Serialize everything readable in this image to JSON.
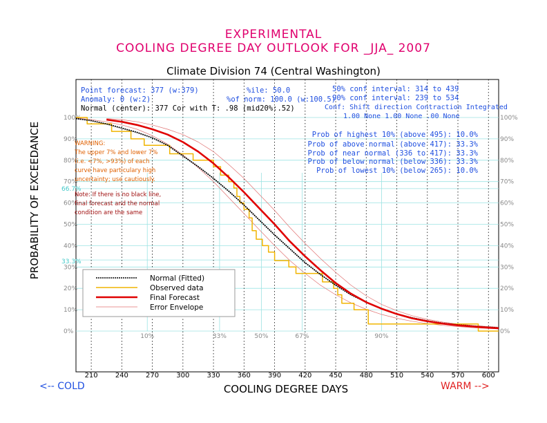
{
  "header": {
    "line1": "EXPERIMENTAL",
    "line2": "COOLING DEGREE DAY OUTLOOK FOR _JJA_ 2007",
    "subtitle": "Climate Division 74 (Central Washington)"
  },
  "info": {
    "point_forecast": "Point forecast: 377 (w:379)",
    "anomaly": "Anomaly: 0 (w:2)",
    "normal": "Normal (center): 377  Cor with T: .98 (mid20%:.52)",
    "pctile": "%ile: 50.0",
    "pct_norm": "%of norm: 100.0 (w:100.5)",
    "ci50": "50% conf interval: 314 to 439",
    "ci90": "90% conf interval: 239 to 534",
    "conf_header": "Conf: Shift direction   Contraction   Integrated",
    "conf_values": "1.00 None           1.00 None   .00 None"
  },
  "probs": [
    "Prob of highest 10% (above 495): 10.0%",
    "Prob of above normal (above 417): 33.3%",
    "Prob of near normal (336 to 417): 33.3%",
    "Prob of below normal (below 336): 33.3%",
    "Prob of lowest 10% (below 265): 10.0%"
  ],
  "warning": {
    "lines": [
      "WARNING:",
      "The upper 7% and lower 7%",
      "(i.e. <7%, >93%) of each",
      "curve have particulary high",
      "uncertainty; use cautiously."
    ]
  },
  "note": {
    "lines": [
      "Note: If there is no black line,",
      "final forecast and  the normal",
      "condition are the same"
    ]
  },
  "labels": {
    "cold": "<--  COLD",
    "warm": "WARM  -->",
    "left_667": "66.7%",
    "left_333": "33.3%"
  },
  "legend": {
    "items": [
      {
        "name": "Normal (Fitted)",
        "color": "#000000"
      },
      {
        "name": "Observed data",
        "color": "#f0b400"
      },
      {
        "name": "Final Forecast",
        "color": "#e00000"
      },
      {
        "name": "Error Envelope",
        "color": "#e07070"
      }
    ]
  },
  "chart_data": {
    "type": "line",
    "xlabel": "COOLING DEGREE DAYS",
    "ylabel": "PROBABILITY OF EXCEEDANCE",
    "xlim": [
      195,
      610
    ],
    "ylim": [
      0,
      100
    ],
    "x_ticks": [
      210,
      240,
      270,
      300,
      330,
      360,
      390,
      420,
      450,
      480,
      510,
      540,
      570,
      600
    ],
    "y_ticks": [
      0,
      10,
      20,
      30,
      40,
      50,
      60,
      70,
      80,
      90,
      100
    ],
    "y_tick_labels": [
      "0%",
      "10%",
      "20%",
      "30%",
      "40%",
      "50%",
      "60%",
      "70%",
      "80%",
      "90%",
      "100%"
    ],
    "grid": true,
    "legend_position": "bottom-left",
    "percentile_markers": [
      {
        "label": "10%",
        "x": 265
      },
      {
        "label": "33%",
        "x": 336
      },
      {
        "label": "50%",
        "x": 377
      },
      {
        "label": "67%",
        "x": 417
      },
      {
        "label": "90%",
        "x": 495
      }
    ],
    "series": [
      {
        "name": "Normal (Fitted)",
        "color": "#000000",
        "x": [
          195,
          210,
          225,
          240,
          255,
          270,
          285,
          300,
          315,
          330,
          345,
          360,
          375,
          390,
          405,
          420,
          435,
          450,
          465,
          480,
          495,
          510,
          525,
          540,
          555,
          570,
          585,
          600,
          610
        ],
        "y": [
          99.5,
          98.5,
          97,
          95,
          93,
          90.5,
          87,
          82,
          77,
          71.5,
          65.5,
          59,
          52,
          45,
          38.5,
          32,
          26.5,
          21.5,
          17,
          13.5,
          10.5,
          8,
          6.2,
          4.8,
          3.7,
          2.9,
          2.3,
          1.8,
          1.5
        ]
      },
      {
        "name": "Observed data",
        "color": "#f0b400",
        "x": [
          195,
          206,
          206,
          230,
          230,
          249,
          249,
          262,
          262,
          287,
          287,
          310,
          310,
          330,
          330,
          337,
          337,
          345,
          345,
          350,
          350,
          353,
          353,
          356,
          356,
          360,
          360,
          365,
          365,
          368,
          368,
          372,
          372,
          378,
          378,
          384,
          384,
          390,
          390,
          404,
          404,
          411,
          411,
          437,
          437,
          448,
          448,
          452,
          452,
          456,
          456,
          468,
          468,
          482,
          482,
          590,
          590,
          610
        ],
        "y": [
          100,
          100,
          97,
          97,
          93.5,
          93.5,
          90,
          90,
          87,
          87,
          83,
          83,
          80,
          80,
          77,
          77,
          73,
          73,
          70,
          70,
          67,
          67,
          63,
          63,
          60,
          60,
          57,
          57,
          53,
          53,
          47,
          47,
          43,
          43,
          40,
          40,
          37,
          37,
          33,
          33,
          30,
          30,
          27,
          27,
          23,
          23,
          20,
          20,
          17,
          17,
          13,
          13,
          10,
          10,
          3.3,
          3.3,
          0,
          0
        ]
      },
      {
        "name": "Final Forecast",
        "color": "#e00000",
        "x": [
          225,
          240,
          255,
          270,
          285,
          300,
          315,
          330,
          345,
          360,
          375,
          390,
          405,
          420,
          435,
          450,
          465,
          480,
          495,
          510,
          525,
          540,
          555,
          570,
          585,
          600,
          610
        ],
        "y": [
          99,
          98,
          96.5,
          94.5,
          92,
          88.5,
          84,
          78.5,
          72,
          65,
          57.5,
          50,
          42,
          35,
          28.5,
          22.5,
          17.5,
          13.5,
          10.5,
          8,
          6,
          4.6,
          3.5,
          2.7,
          2.1,
          1.6,
          1.3
        ]
      },
      {
        "name": "Error Envelope",
        "color": "#e07070",
        "x": [
          225,
          240,
          255,
          270,
          285,
          300,
          315,
          330,
          345,
          360,
          375,
          390,
          405,
          420,
          435,
          450,
          465,
          480,
          495,
          510,
          525,
          540,
          555,
          570,
          585,
          600,
          610
        ],
        "y": [
          99.5,
          99,
          98,
          96.5,
          94.5,
          92,
          88.5,
          84,
          78,
          71.5,
          64,
          56.5,
          48.5,
          41,
          34,
          27.5,
          21.5,
          16.5,
          12.5,
          9.5,
          7.2,
          5.5,
          4.2,
          3.3,
          2.6,
          2.1,
          1.8
        ]
      },
      {
        "name": "Error Envelope",
        "color": "#e07070",
        "x": [
          195,
          210,
          225,
          240,
          255,
          270,
          285,
          300,
          315,
          330,
          345,
          360,
          375,
          390,
          405,
          420,
          435,
          450,
          465,
          480,
          495,
          510,
          525,
          540,
          555,
          570,
          585,
          600,
          610
        ],
        "y": [
          99.8,
          99,
          98,
          96.5,
          94.5,
          91.5,
          87.5,
          82.5,
          76.5,
          70,
          62.5,
          55,
          47.5,
          40,
          33,
          27,
          21.5,
          17,
          13.2,
          10.2,
          7.8,
          6,
          4.6,
          3.5,
          2.7,
          2.1,
          1.6,
          1.2,
          1
        ]
      }
    ]
  }
}
